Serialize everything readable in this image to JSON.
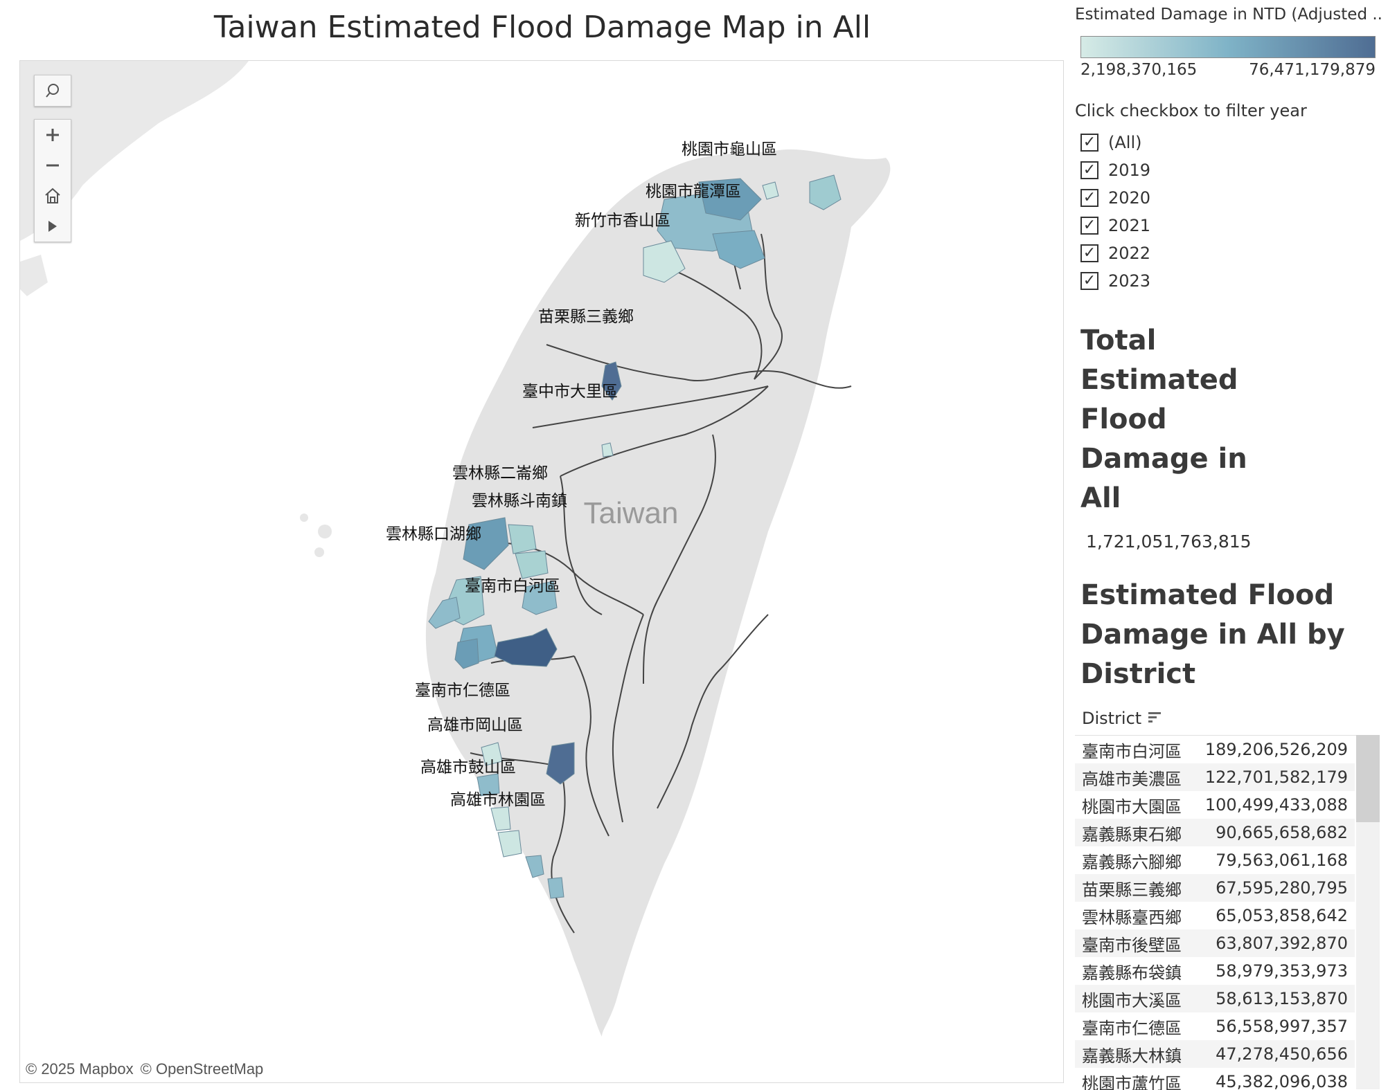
{
  "title": "Taiwan Estimated Flood Damage Map in All",
  "map": {
    "country_label": "Taiwan",
    "attribution": [
      "© 2025 Mapbox",
      "© OpenStreetMap"
    ],
    "controls": [
      "search-icon",
      "zoom-in-icon",
      "zoom-out-icon",
      "home-icon",
      "play-icon"
    ],
    "district_labels": [
      "桃園市龜山區",
      "桃園市龍潭區",
      "新竹市香山區",
      "苗栗縣三義鄉",
      "臺中市大里區",
      "雲林縣二崙鄉",
      "雲林縣斗南鎮",
      "雲林縣口湖鄉",
      "臺南市白河區",
      "臺南市仁德區",
      "高雄市岡山區",
      "高雄市鼓山區",
      "高雄市林園區"
    ],
    "colors": {
      "land": "#e6e6e6",
      "water": "#ffffff",
      "border": "#444444",
      "light": "#cde6e2",
      "mid": "#8fbccb",
      "dark": "#4f6d93"
    }
  },
  "legend": {
    "title": "Estimated Damage in NTD (Adjusted ...",
    "min": "2,198,370,165",
    "max": "76,471,179,879",
    "colors": [
      "#d6ebe6",
      "#7fb3c7",
      "#4f6d93"
    ]
  },
  "filter": {
    "title": "Click checkbox to filter year",
    "items": [
      "(All)",
      "2019",
      "2020",
      "2021",
      "2022",
      "2023"
    ],
    "checked": [
      true,
      true,
      true,
      true,
      true,
      true
    ]
  },
  "total": {
    "title": "Total Estimated Flood Damage in All",
    "value": "1,721,051,763,815"
  },
  "district_table": {
    "title": "Estimated Flood Damage in All by District",
    "column": "District",
    "rows": [
      {
        "district": "臺南市白河區",
        "value": "189,206,526,209"
      },
      {
        "district": "高雄市美濃區",
        "value": "122,701,582,179"
      },
      {
        "district": "桃園市大園區",
        "value": "100,499,433,088"
      },
      {
        "district": "嘉義縣東石鄉",
        "value": "90,665,658,682"
      },
      {
        "district": "嘉義縣六腳鄉",
        "value": "79,563,061,168"
      },
      {
        "district": "苗栗縣三義鄉",
        "value": "67,595,280,795"
      },
      {
        "district": "雲林縣臺西鄉",
        "value": "65,053,858,642"
      },
      {
        "district": "臺南市後壁區",
        "value": "63,807,392,870"
      },
      {
        "district": "嘉義縣布袋鎮",
        "value": "58,979,353,973"
      },
      {
        "district": "桃園市大溪區",
        "value": "58,613,153,870"
      },
      {
        "district": "臺南市仁德區",
        "value": "56,558,997,357"
      },
      {
        "district": "嘉義縣大林鎮",
        "value": "47,278,450,656"
      },
      {
        "district": "桃園市蘆竹區",
        "value": "45,382,096,038"
      }
    ]
  }
}
